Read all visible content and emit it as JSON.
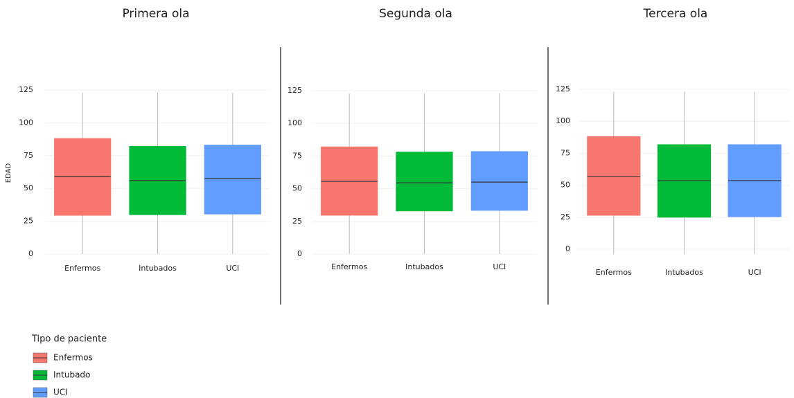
{
  "chart_data": [
    {
      "type": "box",
      "title": "Primera ola",
      "ylabel": "EDAD",
      "categories": [
        "Enfermos",
        "Intubados",
        "UCI"
      ],
      "colors": [
        "#F8766D",
        "#00BA38",
        "#619CFF"
      ],
      "boxes": [
        {
          "low": 0,
          "q1": 29.5,
          "median": 59,
          "q3": 88,
          "high": 123
        },
        {
          "low": 0,
          "q1": 30,
          "median": 56,
          "q3": 82,
          "high": 123
        },
        {
          "low": 0,
          "q1": 30.5,
          "median": 57.5,
          "q3": 83,
          "high": 123
        }
      ],
      "ylim": [
        -3,
        133
      ],
      "yticks": [
        0,
        25,
        50,
        75,
        100,
        125
      ],
      "grid": true
    },
    {
      "type": "box",
      "title": "Segunda ola",
      "categories": [
        "Enfermos",
        "Intubados",
        "UCI"
      ],
      "colors": [
        "#F8766D",
        "#00BA38",
        "#619CFF"
      ],
      "boxes": [
        {
          "low": 0,
          "q1": 29.7,
          "median": 55.6,
          "q3": 82,
          "high": 123
        },
        {
          "low": 0,
          "q1": 33,
          "median": 54.5,
          "q3": 78,
          "high": 123
        },
        {
          "low": 0,
          "q1": 33.4,
          "median": 55,
          "q3": 78.4,
          "high": 123
        }
      ],
      "ylim": [
        -3,
        133
      ],
      "yticks": [
        0,
        25,
        50,
        75,
        100,
        125
      ],
      "grid": true
    },
    {
      "type": "box",
      "title": "Tercera ola",
      "categories": [
        "Enfermos",
        "Intubados",
        "UCI"
      ],
      "colors": [
        "#F8766D",
        "#00BA38",
        "#619CFF"
      ],
      "boxes": [
        {
          "low": -4,
          "q1": 26.5,
          "median": 57,
          "q3": 88,
          "high": 123
        },
        {
          "low": -4,
          "q1": 25,
          "median": 53.6,
          "q3": 81.7,
          "high": 123
        },
        {
          "low": -4,
          "q1": 25.4,
          "median": 53.6,
          "q3": 81.7,
          "high": 123
        }
      ],
      "ylim": [
        -6,
        133
      ],
      "yticks": [
        0,
        25,
        50,
        75,
        100,
        125
      ],
      "grid": true
    }
  ],
  "legend": {
    "title": "Tipo de paciente",
    "items": [
      {
        "name": "Enfermos",
        "color": "#F8766D"
      },
      {
        "name": "Intubado",
        "color": "#00BA38"
      },
      {
        "name": "UCI",
        "color": "#619CFF"
      }
    ]
  }
}
